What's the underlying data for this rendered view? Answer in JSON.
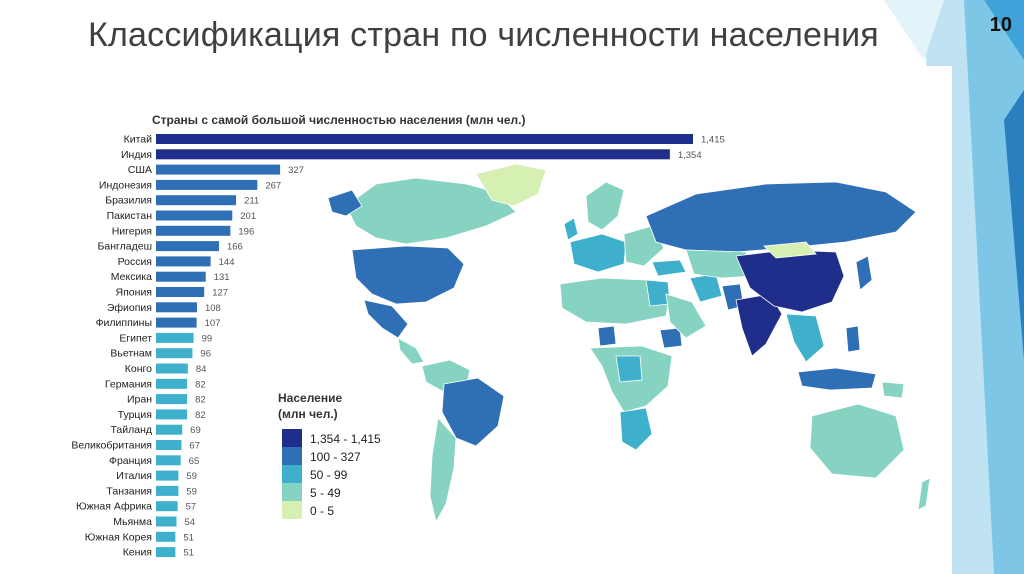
{
  "slide": {
    "title": "Классификация стран по численности населения",
    "page_number": "10"
  },
  "chart_data": {
    "type": "bar",
    "orientation": "horizontal",
    "title": "Страны с самой большой численностью населения (млн чел.)",
    "categories": [
      "Китай",
      "Индия",
      "США",
      "Индонезия",
      "Бразилия",
      "Пакистан",
      "Нигерия",
      "Бангладеш",
      "Россия",
      "Мексика",
      "Япония",
      "Эфиопия",
      "Филиппины",
      "Египет",
      "Вьетнам",
      "Конго",
      "Германия",
      "Иран",
      "Турция",
      "Тайланд",
      "Великобритания",
      "Франция",
      "Италия",
      "Танзания",
      "Южная Африка",
      "Мьянма",
      "Южная Корея",
      "Кения"
    ],
    "values": [
      1415,
      1354,
      327,
      267,
      211,
      201,
      196,
      166,
      144,
      131,
      127,
      108,
      107,
      99,
      96,
      84,
      82,
      82,
      82,
      69,
      67,
      65,
      59,
      59,
      57,
      54,
      51,
      51
    ],
    "value_labels": [
      "1,415",
      "1,354",
      "327",
      "267",
      "211",
      "201",
      "196",
      "166",
      "144",
      "131",
      "127",
      "108",
      "107",
      "99",
      "96",
      "84",
      "82",
      "82",
      "82",
      "69",
      "67",
      "65",
      "59",
      "59",
      "57",
      "54",
      "51",
      "51"
    ],
    "grid": false,
    "colors": {
      "1354-1415": "#1f2e8a",
      "100-327": "#2f6fb5",
      "50-99": "#3fb0cc",
      "5-49": "#86d3c2",
      "0-5": "#d6efb3"
    }
  },
  "map": {
    "legend_title_line1": "Население",
    "legend_title_line2": "(млн чел.)",
    "legend_items": [
      {
        "label": "1,354 - 1,415",
        "color": "#1f2e8a"
      },
      {
        "label": "100 - 327",
        "color": "#2f6fb5"
      },
      {
        "label": "50 - 99",
        "color": "#3fb0cc"
      },
      {
        "label": "5 - 49",
        "color": "#86d3c2"
      },
      {
        "label": "0 - 5",
        "color": "#d6efb3"
      }
    ]
  }
}
